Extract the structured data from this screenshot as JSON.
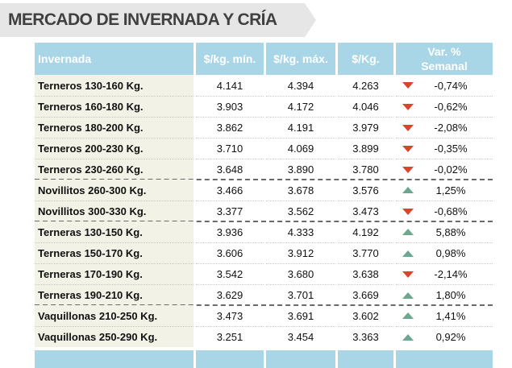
{
  "title": "MERCADO DE INVERNADA Y CRÍA",
  "header": {
    "category": "Invernada",
    "min": "$/kg. mín.",
    "max": "$/kg. máx.",
    "avg": "$/Kg.",
    "var_line1": "Var. %",
    "var_line2": "Semanal"
  },
  "colors": {
    "header_bg": "#a9d6e6",
    "down_arrow": "#d9452c",
    "up_arrow": "#6aa88f",
    "name_bg": "#f2f2e6"
  },
  "rows": [
    {
      "name": "Terneros 130-160 Kg.",
      "min": "4.141",
      "max": "4.394",
      "avg": "4.263",
      "trend": "down",
      "var": "-0,74%"
    },
    {
      "name": "Terneros 160-180 Kg.",
      "min": "3.903",
      "max": "4.172",
      "avg": "4.046",
      "trend": "down",
      "var": "-0,62%"
    },
    {
      "name": "Terneros 180-200 Kg.",
      "min": "3.862",
      "max": "4.191",
      "avg": "3.979",
      "trend": "down",
      "var": "-2,08%"
    },
    {
      "name": "Terneros 200-230 Kg.",
      "min": "3.710",
      "max": "4.069",
      "avg": "3.899",
      "trend": "down",
      "var": "-0,35%"
    },
    {
      "name": "Terneros 230-260 Kg.",
      "min": "3.648",
      "max": "3.890",
      "avg": "3.780",
      "trend": "down",
      "var": "-0,02%"
    },
    {
      "name": "Novillitos 260-300 Kg.",
      "min": "3.466",
      "max": "3.678",
      "avg": "3.576",
      "trend": "up",
      "var": "1,25%"
    },
    {
      "name": "Novillitos 300-330 Kg.",
      "min": "3.377",
      "max": "3.562",
      "avg": "3.473",
      "trend": "down",
      "var": "-0,68%"
    },
    {
      "name": "Terneras 130-150 Kg.",
      "min": "3.936",
      "max": "4.333",
      "avg": "4.192",
      "trend": "up",
      "var": "5,88%"
    },
    {
      "name": "Terneras 150-170 Kg.",
      "min": "3.606",
      "max": "3.912",
      "avg": "3.770",
      "trend": "up",
      "var": "0,98%"
    },
    {
      "name": "Terneras 170-190 Kg.",
      "min": "3.542",
      "max": "3.680",
      "avg": "3.638",
      "trend": "down",
      "var": "-2,14%"
    },
    {
      "name": "Terneras 190-210 Kg.",
      "min": "3.629",
      "max": "3.701",
      "avg": "3.669",
      "trend": "up",
      "var": "1,80%"
    },
    {
      "name": "Vaquillonas 210-250 Kg.",
      "min": "3.473",
      "max": "3.691",
      "avg": "3.602",
      "trend": "up",
      "var": "1,41%"
    },
    {
      "name": "Vaquillonas 250-290 Kg.",
      "min": "3.251",
      "max": "3.454",
      "avg": "3.363",
      "trend": "up",
      "var": "0,92%"
    }
  ]
}
